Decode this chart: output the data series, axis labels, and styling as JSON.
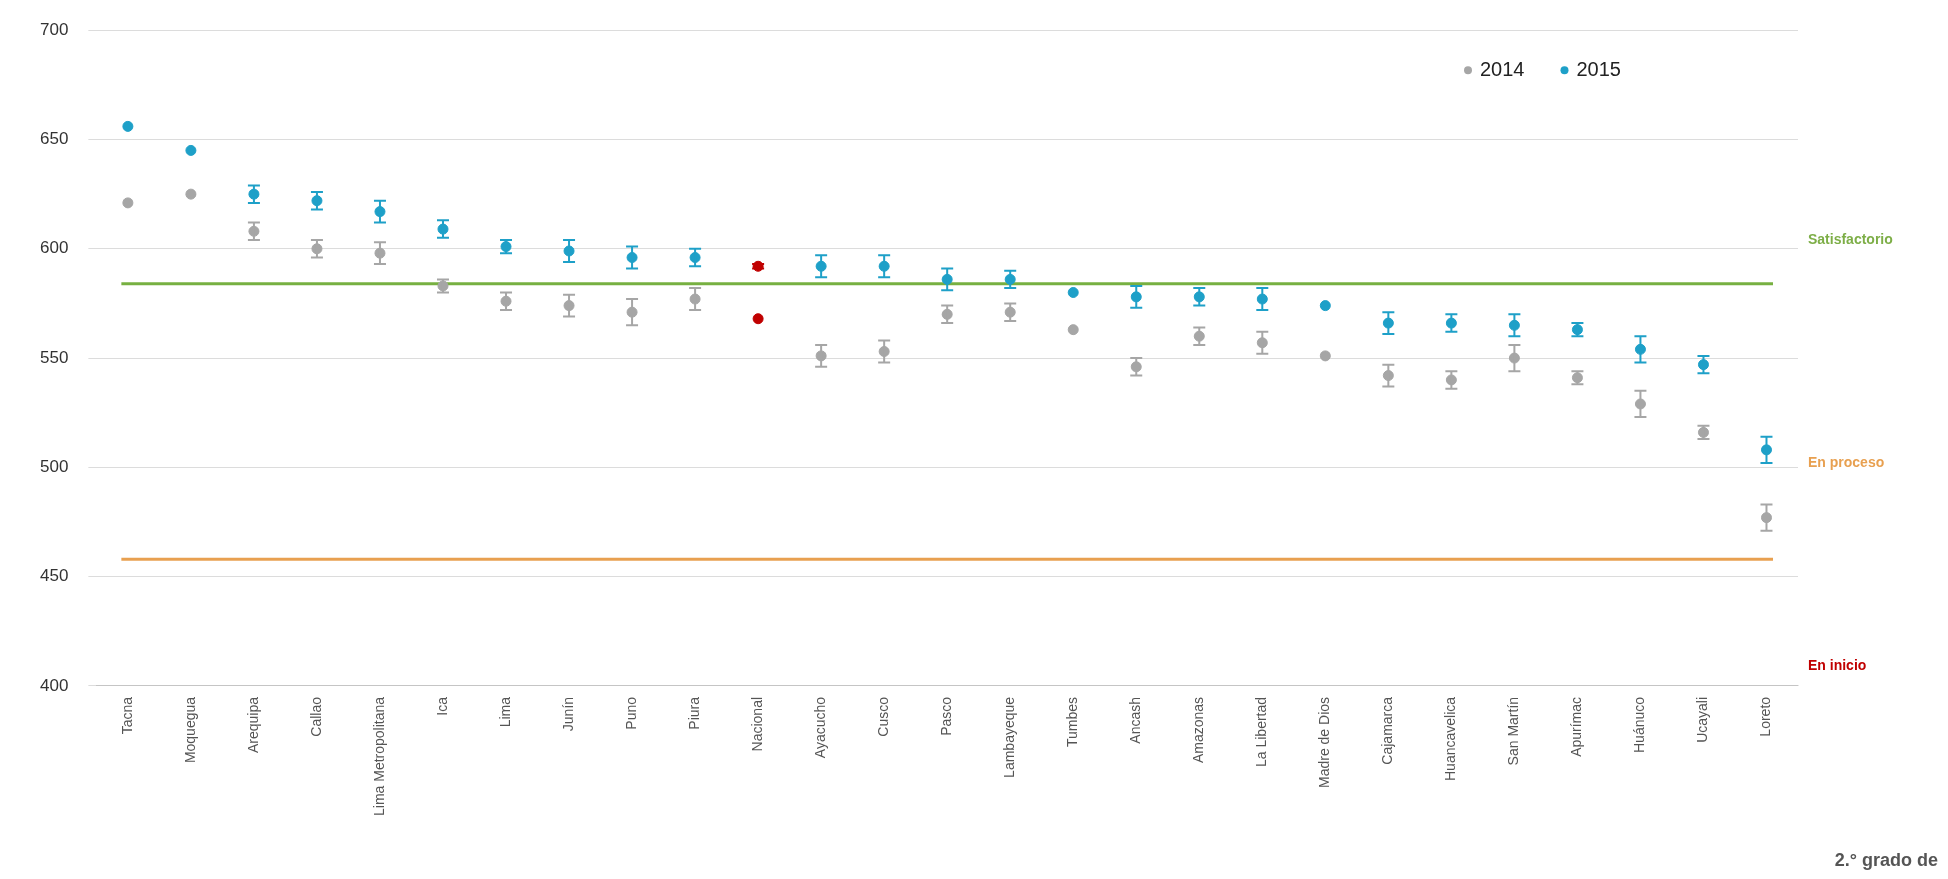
{
  "chart_data": {
    "type": "scatter",
    "categories": [
      "Tacna",
      "Moquegua",
      "Arequipa",
      "Callao",
      "Lima Metropolitana",
      "Ica",
      "Lima",
      "Junín",
      "Puno",
      "Piura",
      "Nacional",
      "Ayacucho",
      "Cusco",
      "Pasco",
      "Lambayeque",
      "Tumbes",
      "Ancash",
      "Amazonas",
      "La Libertad",
      "Madre de Dios",
      "Cajamarca",
      "Huancavelica",
      "San Martín",
      "Apurímac",
      "Huánuco",
      "Ucayali",
      "Loreto"
    ],
    "series": [
      {
        "name": "2014",
        "color": "#a6a6a6",
        "colors": [
          "#a6a6a6",
          "#a6a6a6",
          "#a6a6a6",
          "#a6a6a6",
          "#a6a6a6",
          "#a6a6a6",
          "#a6a6a6",
          "#a6a6a6",
          "#a6a6a6",
          "#a6a6a6",
          "#c00000",
          "#a6a6a6",
          "#a6a6a6",
          "#a6a6a6",
          "#a6a6a6",
          "#a6a6a6",
          "#a6a6a6",
          "#a6a6a6",
          "#a6a6a6",
          "#a6a6a6",
          "#a6a6a6",
          "#a6a6a6",
          "#a6a6a6",
          "#a6a6a6",
          "#a6a6a6",
          "#a6a6a6",
          "#a6a6a6"
        ],
        "values": [
          621,
          625,
          608,
          600,
          598,
          583,
          576,
          574,
          571,
          577,
          568,
          551,
          553,
          570,
          571,
          563,
          546,
          560,
          557,
          551,
          542,
          540,
          550,
          541,
          529,
          516,
          477
        ],
        "errors": [
          null,
          null,
          4,
          4,
          5,
          3,
          4,
          5,
          6,
          5,
          null,
          5,
          5,
          4,
          4,
          null,
          4,
          4,
          5,
          null,
          5,
          4,
          6,
          3,
          6,
          3,
          6
        ]
      },
      {
        "name": "2015",
        "color": "#1ea0c8",
        "colors": [
          "#1ea0c8",
          "#1ea0c8",
          "#1ea0c8",
          "#1ea0c8",
          "#1ea0c8",
          "#1ea0c8",
          "#1ea0c8",
          "#1ea0c8",
          "#1ea0c8",
          "#1ea0c8",
          "#c00000",
          "#1ea0c8",
          "#1ea0c8",
          "#1ea0c8",
          "#1ea0c8",
          "#1ea0c8",
          "#1ea0c8",
          "#1ea0c8",
          "#1ea0c8",
          "#1ea0c8",
          "#1ea0c8",
          "#1ea0c8",
          "#1ea0c8",
          "#1ea0c8",
          "#1ea0c8",
          "#1ea0c8",
          "#1ea0c8"
        ],
        "values": [
          656,
          645,
          625,
          622,
          617,
          609,
          601,
          599,
          596,
          596,
          592,
          592,
          592,
          586,
          586,
          580,
          578,
          578,
          577,
          574,
          566,
          566,
          565,
          563,
          554,
          547,
          508
        ],
        "errors": [
          null,
          null,
          4,
          4,
          5,
          4,
          3,
          5,
          5,
          4,
          1,
          5,
          5,
          5,
          4,
          null,
          5,
          4,
          5,
          null,
          5,
          4,
          5,
          3,
          6,
          4,
          6
        ]
      }
    ],
    "ylim": [
      400,
      700
    ],
    "yticks": [
      400,
      450,
      500,
      550,
      600,
      650,
      700
    ],
    "grid": "y",
    "legend": "top right",
    "marker": "circle",
    "ref_lines": [
      {
        "axis": "y",
        "value": 584,
        "color": "#77b041"
      },
      {
        "axis": "y",
        "value": 458,
        "color": "#e8a050"
      }
    ],
    "annotations": [
      "Satisfactorio",
      "En proceso",
      "En inicio",
      "2.° grado de"
    ]
  }
}
